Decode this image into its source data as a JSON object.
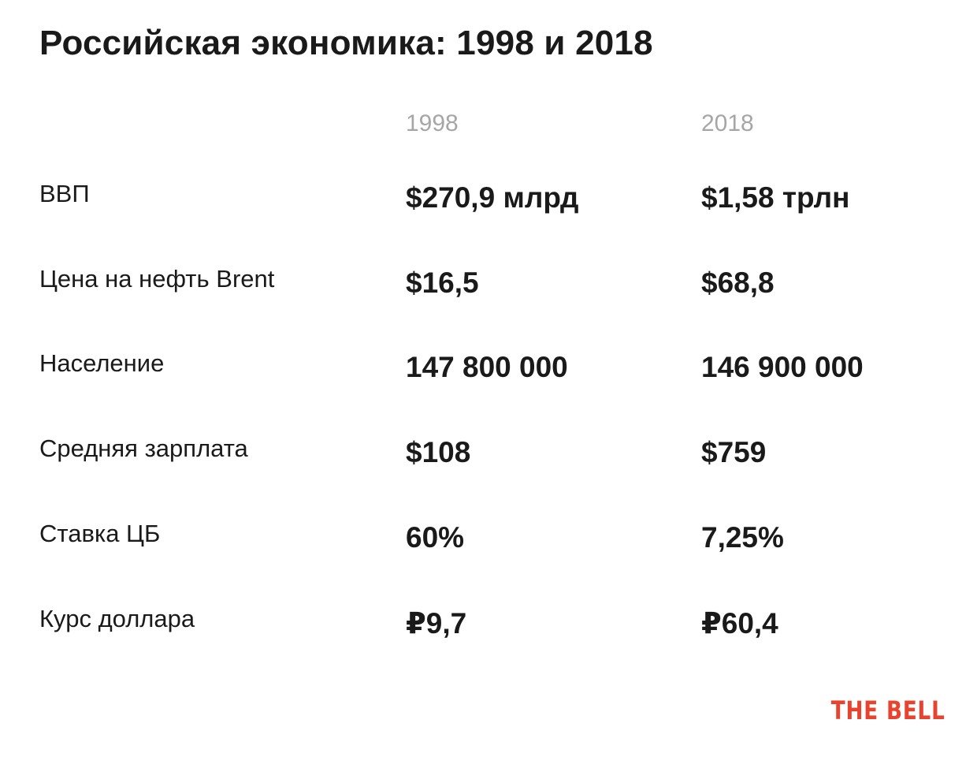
{
  "title": "Российская экономика: 1998 и 2018",
  "brand": {
    "text": "THE BELL",
    "color": "#e8432e"
  },
  "colors": {
    "text": "#1a1a1a",
    "column_header": "#a6a6a6",
    "background": "#ffffff"
  },
  "chart_data": {
    "type": "table",
    "title": "Российская экономика: 1998 и 2018",
    "columns": [
      "1998",
      "2018"
    ],
    "rows": [
      {
        "label": "ВВП",
        "values": [
          "$270,9 млрд",
          "$1,58 трлн"
        ]
      },
      {
        "label": "Цена на нефть Brent",
        "values": [
          "$16,5",
          "$68,8"
        ]
      },
      {
        "label": "Население",
        "values": [
          "147 800 000",
          "146 900 000"
        ]
      },
      {
        "label": "Средняя зарплата",
        "values": [
          "$108",
          "$759"
        ]
      },
      {
        "label": "Ставка ЦБ",
        "values": [
          "60%",
          "7,25%"
        ]
      },
      {
        "label": "Курс доллара",
        "values": [
          "₽9,7",
          "₽60,4"
        ]
      }
    ]
  }
}
